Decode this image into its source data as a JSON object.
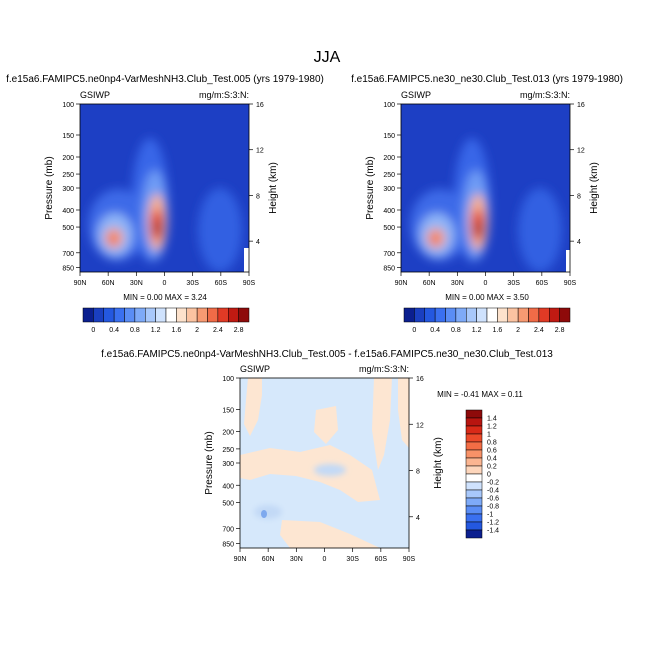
{
  "page_title": "JJA",
  "chart_data": [
    {
      "type": "heatmap",
      "title": "f.e15a6.FAMIPC5.ne0np4-VarMeshNH3.Club_Test.005 (yrs 1979-1980)",
      "variable": "GSIWP",
      "units": "mg/m:S:3:N:",
      "ylabel": "Pressure (mb)",
      "y2label": "Height (km)",
      "x_ticks": [
        "90N",
        "60N",
        "30N",
        "0",
        "30S",
        "60S",
        "90S"
      ],
      "y_ticks": [
        "100",
        "150",
        "200",
        "250",
        "300",
        "400",
        "500",
        "700",
        "850"
      ],
      "y2_ticks": [
        "16",
        "12",
        "8",
        "4"
      ],
      "min_max": "MIN =  0.00  MAX =   3.24",
      "colorbar_labels": [
        "0",
        "0.4",
        "0.8",
        "1.2",
        "1.6",
        "2",
        "2.4",
        "2.8"
      ],
      "colorbar_colors": [
        "#0b1f8f",
        "#1a3fc0",
        "#2458e0",
        "#3a70f0",
        "#5a8df5",
        "#7eaaf8",
        "#a8c8fb",
        "#cfe2fd",
        "#ffffff",
        "#fde2cc",
        "#fbc3a1",
        "#f79a72",
        "#f06b47",
        "#e03a25",
        "#c01a12",
        "#8e0a0a"
      ],
      "series_note": "Ice water path: peak near 5N at ~500 mb, secondary maximum near 45N around 600 mb"
    },
    {
      "type": "heatmap",
      "title": "f.e15a6.FAMIPC5.ne30_ne30.Club_Test.013 (yrs 1979-1980)",
      "variable": "GSIWP",
      "units": "mg/m:S:3:N:",
      "ylabel": "Pressure (mb)",
      "y2label": "Height (km)",
      "x_ticks": [
        "90N",
        "60N",
        "30N",
        "0",
        "30S",
        "60S",
        "90S"
      ],
      "y_ticks": [
        "100",
        "150",
        "200",
        "250",
        "300",
        "400",
        "500",
        "700",
        "850"
      ],
      "y2_ticks": [
        "16",
        "12",
        "8",
        "4"
      ],
      "min_max": "MIN =  0.00  MAX =   3.50",
      "colorbar_labels": [
        "0",
        "0.4",
        "0.8",
        "1.2",
        "1.6",
        "2",
        "2.4",
        "2.8"
      ],
      "colorbar_colors": [
        "#0b1f8f",
        "#1a3fc0",
        "#2458e0",
        "#3a70f0",
        "#5a8df5",
        "#7eaaf8",
        "#a8c8fb",
        "#cfe2fd",
        "#ffffff",
        "#fde2cc",
        "#fbc3a1",
        "#f79a72",
        "#f06b47",
        "#e03a25",
        "#c01a12",
        "#8e0a0a"
      ]
    },
    {
      "type": "heatmap",
      "title": "f.e15a6.FAMIPC5.ne0np4-VarMeshNH3.Club_Test.005 - f.e15a6.FAMIPC5.ne30_ne30.Club_Test.013",
      "variable": "GSIWP",
      "units": "mg/m:S:3:N:",
      "ylabel": "Pressure (mb)",
      "y2label": "Height (km)",
      "x_ticks": [
        "90N",
        "60N",
        "30N",
        "0",
        "30S",
        "60S",
        "90S"
      ],
      "y_ticks": [
        "100",
        "150",
        "200",
        "250",
        "300",
        "400",
        "500",
        "700",
        "850"
      ],
      "y2_ticks": [
        "16",
        "12",
        "8",
        "4"
      ],
      "min_max": "MIN = -0.41  MAX =   0.11",
      "colorbar_labels": [
        "1.4",
        "1.2",
        "1",
        "0.8",
        "0.6",
        "0.4",
        "0.2",
        "0",
        "-0.2",
        "-0.4",
        "-0.6",
        "-0.8",
        "-1",
        "-1.2",
        "-1.4"
      ],
      "colorbar_colors": [
        "#8e0a0a",
        "#b81510",
        "#d92a18",
        "#ec4a2a",
        "#f36d45",
        "#f89268",
        "#fbb591",
        "#fdd6bc",
        "#ffffff",
        "#cfe2fd",
        "#a8c8fb",
        "#7eaaf8",
        "#5a8df5",
        "#3a70f0",
        "#2458e0",
        "#0b1f8f"
      ]
    }
  ]
}
